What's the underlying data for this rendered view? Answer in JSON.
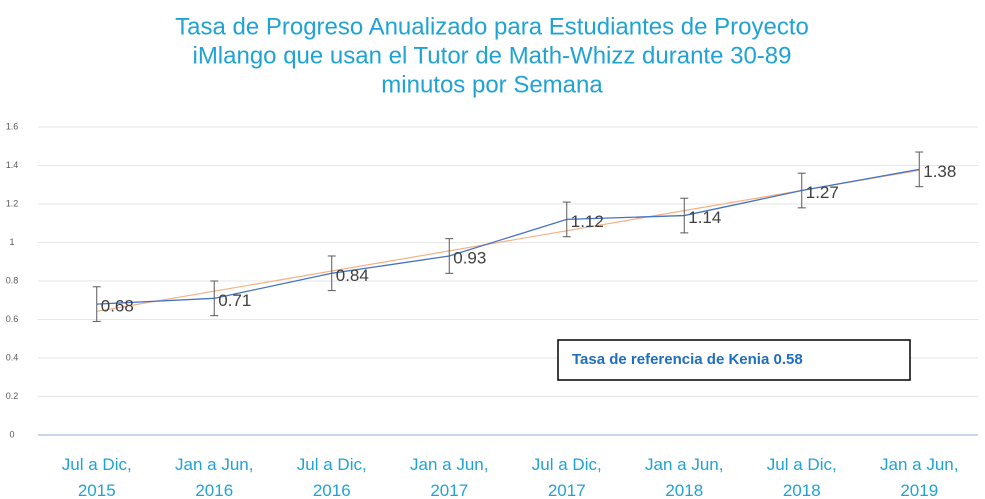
{
  "chart_data": {
    "type": "line",
    "title": [
      "Tasa de Progreso Anualizado para Estudiantes de Proyecto",
      "iMlango que usan el Tutor de Math-Whizz durante 30-89",
      "minutos por Semana"
    ],
    "categories": [
      "Jul a Dic, 2015",
      "Jan a Jun, 2016",
      "Jul a Dic, 2016",
      "Jan a Jun, 2017",
      "Jul a Dic, 2017",
      "Jan a Jun, 2018",
      "Jul a Dic, 2018",
      "Jan a Jun, 2019"
    ],
    "series": [
      {
        "name": "Tasa de Progreso",
        "color": "#4472c4",
        "values": [
          0.68,
          0.71,
          0.84,
          0.93,
          1.12,
          1.14,
          1.27,
          1.38
        ],
        "errors": [
          0.09,
          0.09,
          0.09,
          0.09,
          0.09,
          0.09,
          0.09,
          0.09
        ]
      }
    ],
    "trendline": true,
    "trendline_color": "#f4b183",
    "annotation": "Tasa de referencia de Kenia  0.58",
    "ylim": [
      0,
      1.6
    ],
    "yticks": [
      0,
      0.2,
      0.4,
      0.6,
      0.8,
      1,
      1.2,
      1.4,
      1.6
    ],
    "grid": true
  }
}
